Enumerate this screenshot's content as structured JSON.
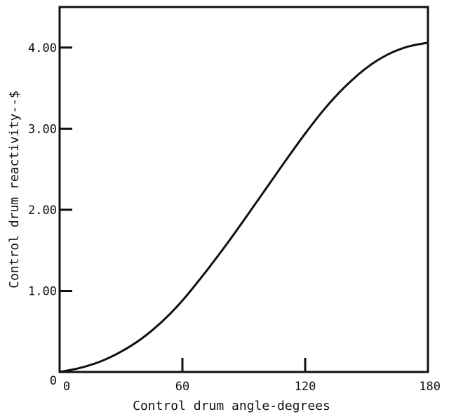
{
  "chart_data": {
    "type": "line",
    "title": "",
    "xlabel": "Control drum angle-degrees",
    "ylabel": "Control drum reactivity--$",
    "xlim": [
      0,
      180
    ],
    "ylim": [
      0,
      4.5
    ],
    "x_ticks": [
      0,
      60,
      120,
      180
    ],
    "x_tick_labels": [
      "0",
      "60",
      "120",
      "180"
    ],
    "y_ticks": [
      0,
      1,
      2,
      3,
      4
    ],
    "y_tick_labels": [
      "0",
      "1.00",
      "2.00",
      "3.00",
      "4.00"
    ],
    "grid": false,
    "legend": "none",
    "series": [
      {
        "x": [
          0,
          10,
          20,
          30,
          40,
          50,
          60,
          70,
          80,
          90,
          100,
          110,
          120,
          130,
          140,
          150,
          160,
          170,
          180
        ],
        "y": [
          0.0,
          0.05,
          0.13,
          0.25,
          0.41,
          0.62,
          0.88,
          1.19,
          1.52,
          1.87,
          2.23,
          2.59,
          2.94,
          3.26,
          3.53,
          3.75,
          3.91,
          4.01,
          4.06
        ]
      }
    ]
  },
  "colors": {
    "ink": "#111111",
    "background": "#ffffff"
  }
}
